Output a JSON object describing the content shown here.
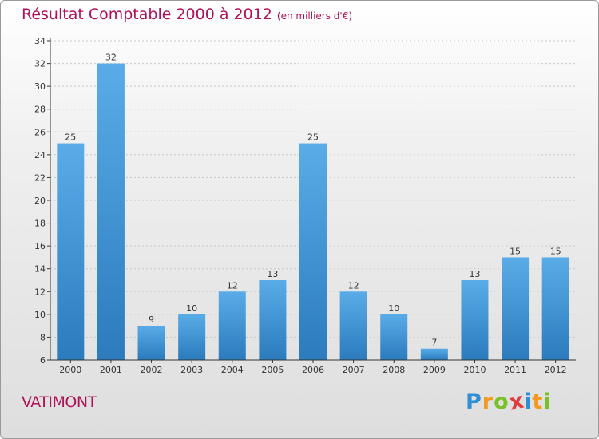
{
  "title": "Résultat Comptable 2000 à 2012",
  "unit": "(en milliers d'€)",
  "location": "VATIMONT",
  "brand": {
    "letters": [
      "P",
      "r",
      "o",
      "x",
      "i",
      "t",
      "i"
    ],
    "colors": [
      "#2e8fd6",
      "#f39a1e",
      "#7bbf2a",
      "#e23b3b",
      "#2e8fd6",
      "#f39a1e",
      "#7bbf2a"
    ]
  },
  "colors": {
    "title": "#b0125a",
    "bar_light": "#5aace8",
    "bar_dark": "#2b7bbd",
    "axis": "#333333",
    "grid": "#c8c8c8"
  },
  "chart_data": {
    "type": "bar",
    "title": "Résultat Comptable 2000 à 2012",
    "xlabel": "",
    "ylabel": "",
    "categories": [
      "2000",
      "2001",
      "2002",
      "2003",
      "2004",
      "2005",
      "2006",
      "2007",
      "2008",
      "2009",
      "2010",
      "2011",
      "2012"
    ],
    "values": [
      25,
      32,
      9,
      10,
      12,
      13,
      25,
      12,
      10,
      7,
      13,
      15,
      15
    ],
    "ylim": [
      6,
      34
    ],
    "yticks": [
      6,
      8,
      10,
      12,
      14,
      16,
      18,
      20,
      22,
      24,
      26,
      28,
      30,
      32,
      34
    ],
    "grid": true,
    "legend": "none"
  }
}
